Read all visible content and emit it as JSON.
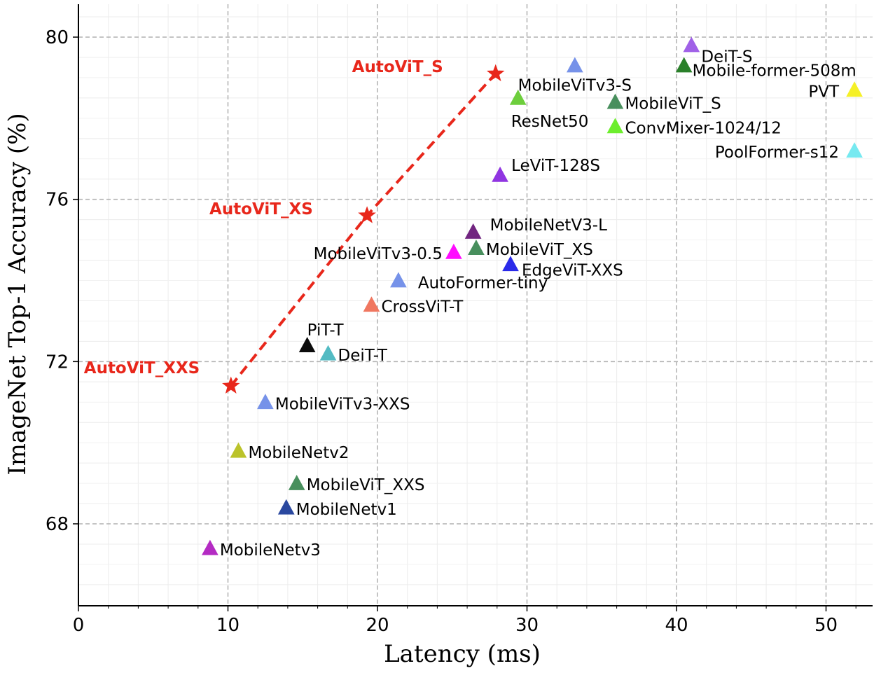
{
  "chart_data": {
    "type": "scatter",
    "xlabel": "Latency (ms)",
    "ylabel": "ImageNet Top-1 Accuracy (%)",
    "xlim": [
      0,
      53
    ],
    "ylim": [
      66.2,
      80.8
    ],
    "xticks": [
      0,
      10,
      20,
      30,
      40,
      50
    ],
    "yticks": [
      68,
      72,
      76,
      80
    ],
    "grid": true,
    "line_series": {
      "color": "#e8271b",
      "points": [
        {
          "x": 10.2,
          "y": 71.4,
          "label": "AutoViT_XXS"
        },
        {
          "x": 19.3,
          "y": 75.6,
          "label": "AutoViT_XS"
        },
        {
          "x": 27.9,
          "y": 79.1,
          "label": "AutoViT_S"
        }
      ]
    },
    "points": [
      {
        "label": "DeiT-S",
        "x": 41.0,
        "y": 79.8,
        "color": "#9b59e6"
      },
      {
        "label": "Mobile-former-508m",
        "x": 40.5,
        "y": 79.3,
        "color": "#1f7a1f"
      },
      {
        "label": "MobileViTv3-S",
        "x": 33.2,
        "y": 79.3,
        "color": "#6f8de8"
      },
      {
        "label": "PVT",
        "x": 51.9,
        "y": 78.7,
        "color": "#f5f01c"
      },
      {
        "label": "ResNet50",
        "x": 29.4,
        "y": 78.5,
        "color": "#66cc33"
      },
      {
        "label": "MobileViT_S",
        "x": 35.9,
        "y": 78.4,
        "color": "#3f8a55"
      },
      {
        "label": "ConvMixer-1024/12",
        "x": 35.9,
        "y": 77.8,
        "color": "#66ee22"
      },
      {
        "label": "PoolFormer-s12",
        "x": 51.9,
        "y": 77.2,
        "color": "#6fe8f0"
      },
      {
        "label": "LeViT-128S",
        "x": 28.2,
        "y": 76.6,
        "color": "#8b2be0"
      },
      {
        "label": "MobileNetV3-L",
        "x": 26.4,
        "y": 75.2,
        "color": "#6a1a7a"
      },
      {
        "label": "MobileViT_XS",
        "x": 26.6,
        "y": 74.8,
        "color": "#3f8a55"
      },
      {
        "label": "MobileViTv3-0.5",
        "x": 25.1,
        "y": 74.7,
        "color": "#ff00ff"
      },
      {
        "label": "EdgeViT-XXS",
        "x": 28.9,
        "y": 74.4,
        "color": "#1f1fe8"
      },
      {
        "label": "AutoFormer-tiny",
        "x": 21.4,
        "y": 74.0,
        "color": "#6f8de8"
      },
      {
        "label": "CrossViT-T",
        "x": 19.6,
        "y": 73.4,
        "color": "#f07058"
      },
      {
        "label": "PiT-T",
        "x": 15.3,
        "y": 72.4,
        "color": "#000000"
      },
      {
        "label": "DeiT-T",
        "x": 16.7,
        "y": 72.2,
        "color": "#4ab8c0"
      },
      {
        "label": "MobileViTv3-XXS",
        "x": 12.5,
        "y": 71.0,
        "color": "#6f8de8"
      },
      {
        "label": "MobileNetv2",
        "x": 10.7,
        "y": 69.8,
        "color": "#b8c020"
      },
      {
        "label": "MobileViT_XXS",
        "x": 14.6,
        "y": 69.0,
        "color": "#3f8a55"
      },
      {
        "label": "MobileNetv1",
        "x": 13.9,
        "y": 68.4,
        "color": "#1f3f9a"
      },
      {
        "label": "MobileNetv3",
        "x": 8.8,
        "y": 67.4,
        "color": "#b020c0"
      }
    ]
  }
}
